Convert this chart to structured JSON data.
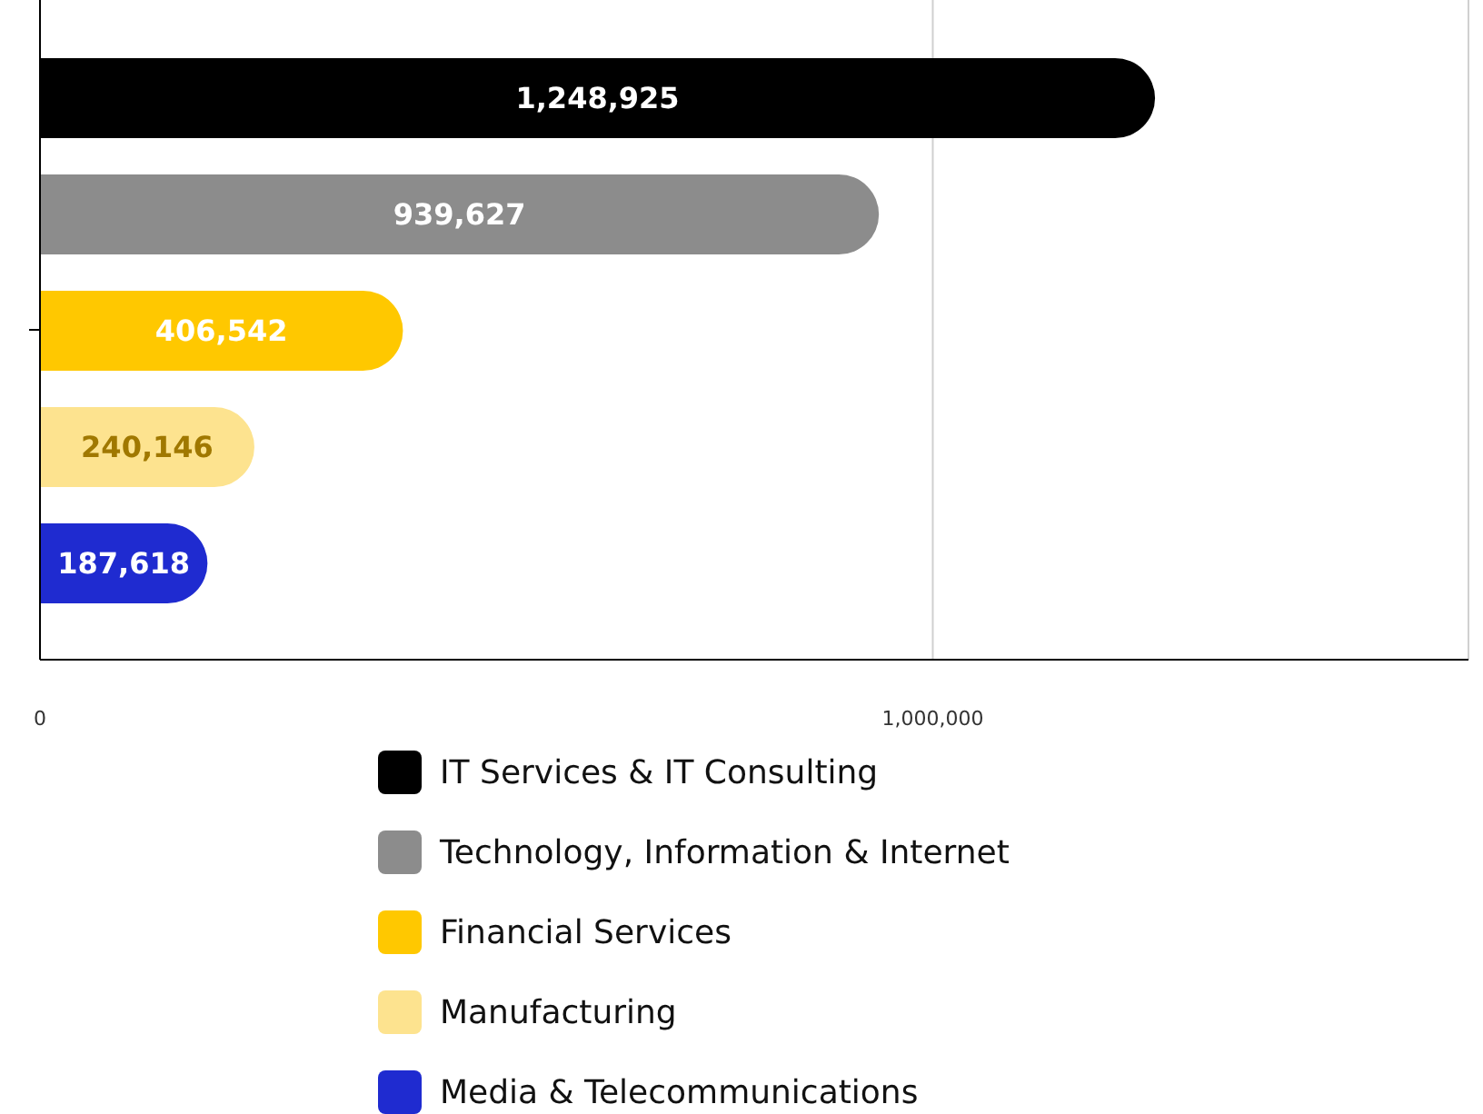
{
  "chart_data": {
    "type": "bar",
    "orientation": "horizontal",
    "categories": [
      null
    ],
    "series": [
      {
        "name": "IT Services & IT Consulting",
        "color": "#000000",
        "values": [
          1248925
        ],
        "value_labels": [
          "1,248,925"
        ]
      },
      {
        "name": "Technology, Information & Internet",
        "color": "#8c8c8c",
        "values": [
          939627
        ],
        "value_labels": [
          "939,627"
        ]
      },
      {
        "name": "Financial Services",
        "color": "#ffc800",
        "values": [
          406542
        ],
        "value_labels": [
          "406,542"
        ]
      },
      {
        "name": "Manufacturing",
        "color": "#fde38f",
        "values": [
          240146
        ],
        "value_labels": [
          "240,146"
        ]
      },
      {
        "name": "Media & Telecommunications",
        "color": "#1f2bd0",
        "values": [
          187618
        ],
        "value_labels": [
          "187,618"
        ]
      }
    ],
    "xlim": [
      0,
      1600000
    ],
    "xticks": [
      0,
      {
        "value": 1000000,
        "label": "1,000,000"
      }
    ],
    "grid": "x",
    "legend": "bottom"
  }
}
